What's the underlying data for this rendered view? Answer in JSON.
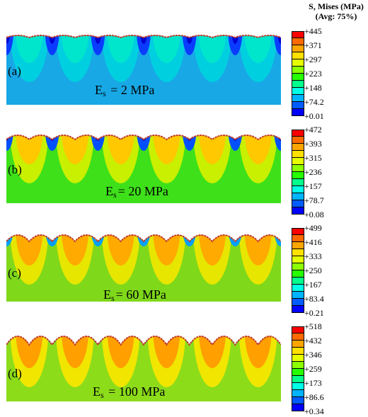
{
  "legend": {
    "title_line1": "S, Mises (MPa)",
    "title_line2": "(Avg: 75%)"
  },
  "band_colors": [
    "#0000ff",
    "#005cff",
    "#00b4ff",
    "#00ffe6",
    "#00ff8c",
    "#26ff00",
    "#8cff00",
    "#e6ff00",
    "#ffe000",
    "#ffa500",
    "#ff6a00",
    "#ff0000"
  ],
  "panels": [
    {
      "id": "a",
      "label": "(a)",
      "es_prefix": "E",
      "es_sub": "s",
      "es_value": " = 2 MPa",
      "scale_ticks": [
        "+445",
        "+371",
        "+297",
        "+223",
        "+148",
        "+74.2",
        "+0.01"
      ],
      "colors": {
        "base": "#18a8e6",
        "lobe1": "#00cfe0",
        "lobe2": "#00e6cc",
        "peak": "#0a3cff",
        "peak_core": "#0000d0",
        "surface": "#c0392b"
      }
    },
    {
      "id": "b",
      "label": "(b)",
      "es_prefix": "E",
      "es_sub": "s",
      "es_value": "= 20 MPa",
      "scale_ticks": [
        "+472",
        "+393",
        "+315",
        "+236",
        "+157",
        "+78.7",
        "+0.08"
      ],
      "colors": {
        "base": "#3ee01a",
        "lobe1": "#c8f000",
        "lobe2": "#ffc800",
        "peak": "#0050ff",
        "peak_core": "#0000c8",
        "surface": "#c0392b"
      }
    },
    {
      "id": "c",
      "label": "(c)",
      "es_prefix": "E",
      "es_sub": "s",
      "es_value": "= 60 MPa",
      "scale_ticks": [
        "+499",
        "+416",
        "+333",
        "+250",
        "+167",
        "+83.4",
        "+0.21"
      ],
      "colors": {
        "base": "#7fd81a",
        "lobe1": "#e6e600",
        "lobe2": "#ffaa00",
        "peak": "#00a0ff",
        "peak_core": "#0000d0",
        "surface": "#c0392b"
      }
    },
    {
      "id": "d",
      "label": "(d)",
      "es_prefix": "E",
      "es_sub": "s",
      "es_value": " = 100 MPa",
      "scale_ticks": [
        "+518",
        "+432",
        "+346",
        "+259",
        "+173",
        "+86.6",
        "+0.34"
      ],
      "colors": {
        "base": "#8cdc1a",
        "lobe1": "#f0e600",
        "lobe2": "#ff9f00",
        "peak": "#00b4ff",
        "peak_core": "#0000d0",
        "surface": "#c0392b"
      }
    }
  ]
}
